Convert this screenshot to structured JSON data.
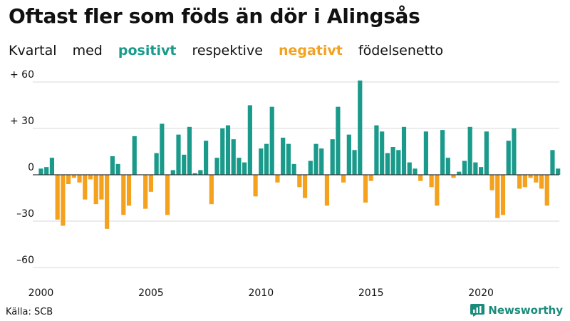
{
  "title": "Oftast fler som föds än dör i Alingsås",
  "subtitle": {
    "w1": "Kvartal",
    "w2": "med",
    "positive": "positivt",
    "w3": "respektive",
    "negative": "negativt",
    "w4": "födelsenetto"
  },
  "source": "Källa: SCB",
  "brand": "Newsworthy",
  "colors": {
    "positive": "#1a9a8a",
    "negative": "#f4a11e",
    "grid": "#d9d9d9",
    "zero": "#333333"
  },
  "chart_data": {
    "type": "bar",
    "title": "Oftast fler som föds än dör i Alingsås",
    "subtitle": "Kvartal med positivt respektive negativt födelsenetto",
    "x_start": "2000 Q1",
    "x_ticks": [
      "2000",
      "2005",
      "2010",
      "2015",
      "2020"
    ],
    "y_ticks": [
      60,
      30,
      0,
      -30,
      -60
    ],
    "y_tick_labels": [
      "+ 60",
      "+ 30",
      "0",
      "–30",
      "–60"
    ],
    "ylim": [
      -62,
      62
    ],
    "values": [
      4,
      5,
      11,
      -29,
      -33,
      -6,
      -2,
      -5,
      -16,
      -3,
      -19,
      -16,
      -35,
      12,
      7,
      -26,
      -20,
      25,
      0,
      -22,
      -11,
      14,
      33,
      -26,
      3,
      26,
      13,
      31,
      1,
      3,
      22,
      -19,
      11,
      30,
      32,
      23,
      11,
      8,
      45,
      -14,
      17,
      20,
      44,
      -5,
      24,
      20,
      7,
      -8,
      -15,
      9,
      20,
      17,
      -20,
      23,
      44,
      -5,
      26,
      16,
      61,
      -18,
      -4,
      32,
      28,
      14,
      18,
      16,
      31,
      8,
      4,
      -4,
      28,
      -8,
      -20,
      29,
      11,
      -2,
      2,
      9,
      31,
      8,
      5,
      28,
      -10,
      -28,
      -26,
      22,
      30,
      -9,
      -8,
      -2,
      -5,
      -9,
      -20,
      16,
      4
    ]
  }
}
